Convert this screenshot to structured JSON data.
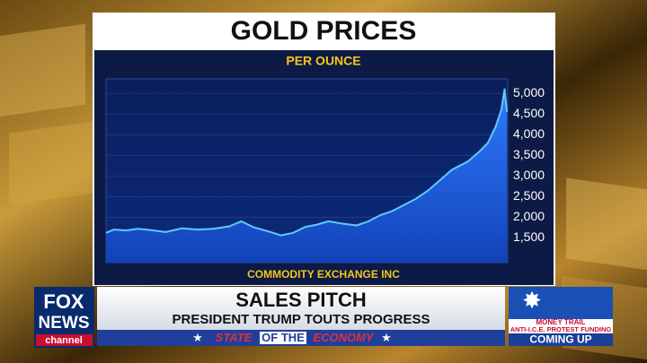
{
  "chart_data": {
    "type": "area",
    "title": "GOLD PRICES",
    "subtitle": "PER OUNCE",
    "source": "COMMODITY EXCHANGE INC",
    "x": [
      2020.55,
      2020.65,
      2020.8,
      2020.95,
      2021.1,
      2021.3,
      2021.5,
      2021.7,
      2021.9,
      2022.1,
      2022.25,
      2022.4,
      2022.6,
      2022.75,
      2022.9,
      2023.05,
      2023.2,
      2023.35,
      2023.5,
      2023.7,
      2023.85,
      2024.0,
      2024.15,
      2024.3,
      2024.45,
      2024.6,
      2024.75,
      2024.9,
      2025.0,
      2025.1,
      2025.25,
      2025.35,
      2025.45,
      2025.52,
      2025.56,
      2025.59
    ],
    "values": [
      1620,
      1700,
      1680,
      1720,
      1690,
      1640,
      1730,
      1700,
      1720,
      1780,
      1900,
      1760,
      1650,
      1560,
      1620,
      1760,
      1820,
      1900,
      1850,
      1800,
      1900,
      2050,
      2150,
      2300,
      2450,
      2650,
      2900,
      3150,
      3250,
      3350,
      3600,
      3800,
      4200,
      4600,
      5100,
      4550
    ],
    "color": "#5fc8ff",
    "xlim": [
      2020.55,
      2025.6
    ],
    "xticks": [
      2021,
      2022,
      2023,
      2024,
      2025
    ],
    "ylim": [
      900,
      5350
    ],
    "yticks": [
      {
        "value": 1500,
        "label": "1,500"
      },
      {
        "value": 2000,
        "label": "2,000"
      },
      {
        "value": 2500,
        "label": "2,500"
      },
      {
        "value": 3000,
        "label": "3,000"
      },
      {
        "value": 3500,
        "label": "3,500"
      },
      {
        "value": 4000,
        "label": "4,000"
      },
      {
        "value": 4500,
        "label": "4,500"
      },
      {
        "value": 5000,
        "label": "5,000"
      }
    ],
    "grid": true
  },
  "logo": {
    "line1": "FOX",
    "line2": "NEWS",
    "line3": "channel"
  },
  "lower_third": {
    "headline": "SALES PITCH",
    "subhead": "PRESIDENT TRUMP TOUTS PROGRESS",
    "banner": [
      "STATE",
      "OF THE",
      "ECONOMY"
    ]
  },
  "promo": {
    "line1": "MONEY TRAIL",
    "line2": "ANTI-I.C.E. PROTEST FUNDING",
    "line3": "COMING UP"
  }
}
